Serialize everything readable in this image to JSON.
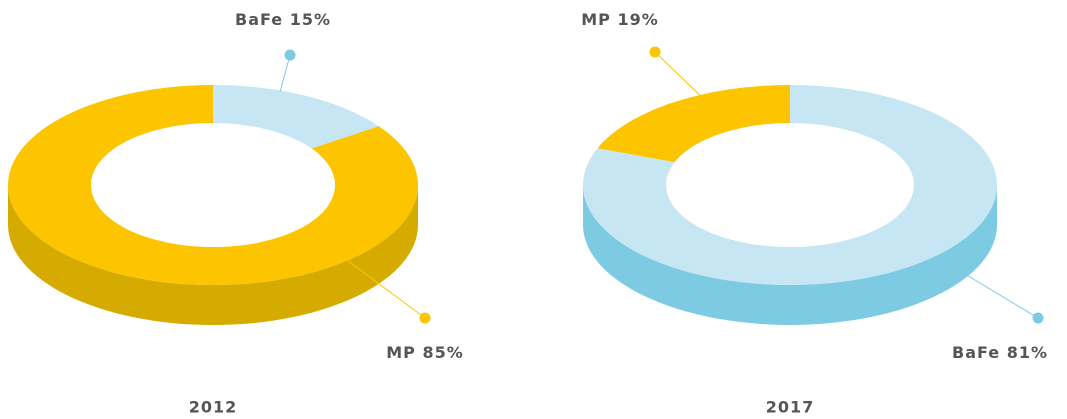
{
  "chart_data": [
    {
      "type": "donut",
      "title": "2012",
      "categories": [
        "BaFe",
        "MP"
      ],
      "values": [
        15,
        85
      ],
      "value_labels": [
        "15%",
        "85%"
      ],
      "colors": [
        "#c5e6f2",
        "#fdc400"
      ],
      "side_colors": [
        "#7dcae3",
        "#d6ab00"
      ]
    },
    {
      "type": "donut",
      "title": "2017",
      "categories": [
        "BaFe",
        "MP"
      ],
      "values": [
        81,
        19
      ],
      "value_labels": [
        "81%",
        "19%"
      ],
      "colors": [
        "#c5e6f2",
        "#fdc400"
      ],
      "side_colors": [
        "#7dcae3",
        "#d6ab00"
      ]
    }
  ]
}
